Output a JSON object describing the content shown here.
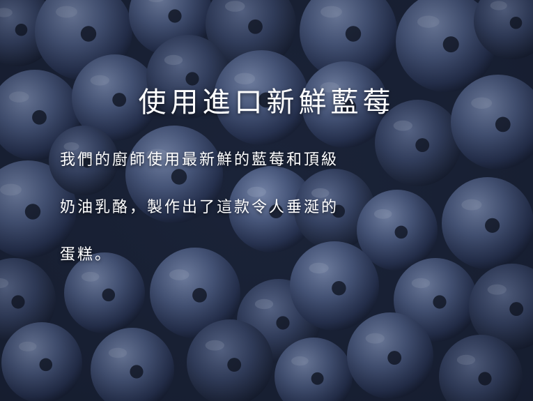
{
  "heading": "使用進口新鮮藍莓",
  "paragraph_lines": [
    "我們的廚師使用最新鮮的藍莓和頂級",
    "奶油乳酪，製作出了這款令人垂涎的",
    "蛋糕。"
  ],
  "colors": {
    "text": "#ffffff",
    "berry_dark": "#1f2a44",
    "berry_mid": "#4a5a80",
    "berry_light": "#7d8fb5"
  }
}
